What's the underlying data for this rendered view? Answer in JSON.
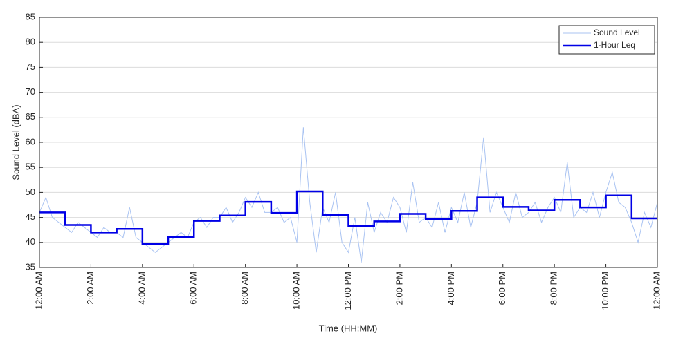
{
  "chart_data": {
    "type": "line",
    "x_label": "Time (HH:MM)",
    "y_label": "Sound Level (dBA)",
    "xlim": [
      0,
      24
    ],
    "ylim": [
      35,
      85
    ],
    "xticks": [
      {
        "value": 0,
        "label": "12:00 AM"
      },
      {
        "value": 2,
        "label": "2:00 AM"
      },
      {
        "value": 4,
        "label": "4:00 AM"
      },
      {
        "value": 6,
        "label": "6:00 AM"
      },
      {
        "value": 8,
        "label": "8:00 AM"
      },
      {
        "value": 10,
        "label": "10:00 AM"
      },
      {
        "value": 12,
        "label": "12:00 PM"
      },
      {
        "value": 14,
        "label": "2:00 PM"
      },
      {
        "value": 16,
        "label": "4:00 PM"
      },
      {
        "value": 18,
        "label": "6:00 PM"
      },
      {
        "value": 20,
        "label": "8:00 PM"
      },
      {
        "value": 22,
        "label": "10:00 PM"
      },
      {
        "value": 24,
        "label": "12:00 AM"
      }
    ],
    "yticks": [
      35,
      40,
      45,
      50,
      55,
      60,
      65,
      70,
      75,
      80,
      85
    ],
    "grid": true,
    "legend": "top-right",
    "series": [
      {
        "name": "Sound Level",
        "color": "#a9c3f2",
        "width": 1,
        "step": false,
        "x": [
          0,
          0.25,
          0.5,
          0.75,
          1,
          1.25,
          1.5,
          1.75,
          2,
          2.25,
          2.5,
          2.75,
          3,
          3.25,
          3.5,
          3.75,
          4,
          4.25,
          4.5,
          4.75,
          5,
          5.25,
          5.5,
          5.75,
          6,
          6.25,
          6.5,
          6.75,
          7,
          7.25,
          7.5,
          7.75,
          8,
          8.25,
          8.5,
          8.75,
          9,
          9.25,
          9.5,
          9.75,
          10,
          10.25,
          10.5,
          10.75,
          11,
          11.25,
          11.5,
          11.75,
          12,
          12.25,
          12.5,
          12.75,
          13,
          13.25,
          13.5,
          13.75,
          14,
          14.25,
          14.5,
          14.75,
          15,
          15.25,
          15.5,
          15.75,
          16,
          16.25,
          16.5,
          16.75,
          17,
          17.25,
          17.5,
          17.75,
          18,
          18.25,
          18.5,
          18.75,
          19,
          19.25,
          19.5,
          19.75,
          20,
          20.25,
          20.5,
          20.75,
          21,
          21.25,
          21.5,
          21.75,
          22,
          22.25,
          22.5,
          22.75,
          23,
          23.25,
          23.5,
          23.75,
          24
        ],
        "values": [
          46,
          49,
          45,
          44,
          43,
          42,
          44,
          43,
          42,
          41,
          43,
          42,
          42,
          41,
          47,
          41,
          40,
          39,
          38,
          39,
          40,
          41,
          42,
          41,
          44,
          45,
          43,
          45,
          45,
          47,
          44,
          46,
          49,
          47,
          50,
          46,
          46,
          47,
          44,
          45,
          40,
          63,
          48,
          38,
          47,
          44,
          50,
          40,
          38,
          45,
          36,
          48,
          42,
          46,
          44,
          49,
          47,
          42,
          52,
          44,
          45,
          43,
          48,
          42,
          47,
          44,
          50,
          43,
          48,
          61,
          46,
          50,
          47,
          44,
          50,
          45,
          46,
          48,
          44,
          47,
          49,
          46,
          56,
          45,
          47,
          46,
          50,
          45,
          50,
          54,
          48,
          47,
          44,
          40,
          46,
          43,
          48
        ]
      },
      {
        "name": "1-Hour Leq",
        "color": "#0000e6",
        "width": 2.5,
        "step": true,
        "x": [
          0,
          1,
          2,
          3,
          4,
          5,
          6,
          7,
          8,
          9,
          10,
          11,
          12,
          13,
          14,
          15,
          16,
          17,
          18,
          19,
          20,
          21,
          22,
          23
        ],
        "values": [
          46,
          43.5,
          42,
          42.7,
          39.7,
          41.1,
          44.3,
          45.4,
          48.1,
          45.9,
          50.2,
          45.5,
          43.3,
          44.2,
          45.7,
          44.7,
          46.3,
          49,
          47.1,
          46.4,
          48.5,
          47,
          49.4,
          44.8
        ]
      }
    ]
  }
}
